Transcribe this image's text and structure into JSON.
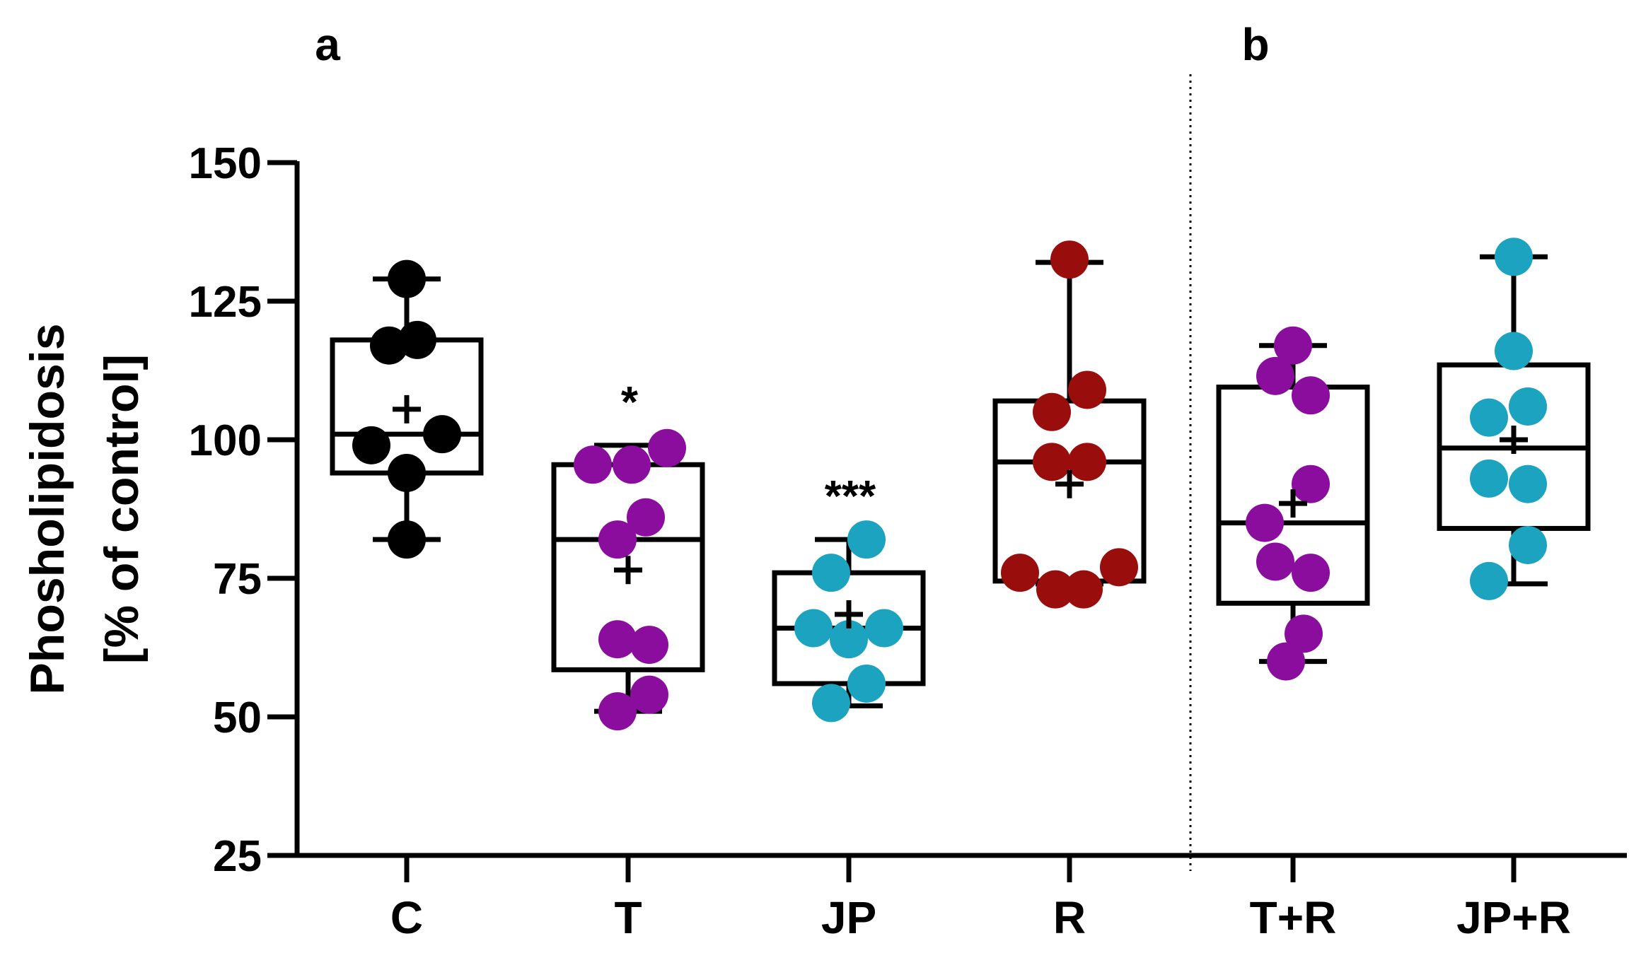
{
  "chart_data": {
    "type": "box",
    "ylabel_line1": "Phosholipidosis",
    "ylabel_line2": "[% of control]",
    "ylim": [
      25,
      150
    ],
    "yticks": [
      25,
      50,
      75,
      100,
      125,
      150
    ],
    "panels": [
      {
        "label": "a",
        "groups": [
          "C",
          "T",
          "JP",
          "R"
        ]
      },
      {
        "label": "b",
        "groups": [
          "T+R",
          "JP+R"
        ]
      }
    ],
    "groups": [
      {
        "name": "C",
        "color": "#000000",
        "whisker_low": 82,
        "q1": 94,
        "median": 101,
        "q3": 118,
        "whisker_high": 129,
        "mean": 105.5,
        "points": [
          [
            0,
            129
          ],
          [
            -0.25,
            117
          ],
          [
            0.15,
            118
          ],
          [
            -0.5,
            99
          ],
          [
            0.5,
            101
          ],
          [
            0,
            94
          ],
          [
            0,
            82
          ]
        ],
        "significance": ""
      },
      {
        "name": "T",
        "color": "#8b0d9e",
        "whisker_low": 51,
        "q1": 58.5,
        "median": 82,
        "q3": 95.5,
        "whisker_high": 99,
        "mean": 76.5,
        "points": [
          [
            -0.5,
            95.5
          ],
          [
            0.05,
            95.5
          ],
          [
            0.55,
            98.5
          ],
          [
            0.25,
            86
          ],
          [
            -0.15,
            82
          ],
          [
            -0.15,
            64
          ],
          [
            0.3,
            63
          ],
          [
            0.3,
            54
          ],
          [
            -0.15,
            51
          ]
        ],
        "significance": "*"
      },
      {
        "name": "JP",
        "color": "#1ba3bf",
        "whisker_low": 52,
        "q1": 56,
        "median": 66,
        "q3": 76,
        "whisker_high": 82,
        "mean": 68.5,
        "points": [
          [
            0.25,
            82
          ],
          [
            -0.25,
            76
          ],
          [
            -0.5,
            66
          ],
          [
            0,
            64
          ],
          [
            0.5,
            66
          ],
          [
            0.25,
            56
          ],
          [
            -0.25,
            52.5
          ]
        ],
        "significance": "***"
      },
      {
        "name": "R",
        "color": "#9a0d0d",
        "whisker_low": 74,
        "q1": 74.5,
        "median": 96,
        "q3": 107,
        "whisker_high": 132,
        "mean": 92,
        "points": [
          [
            0,
            132.5
          ],
          [
            0.25,
            109
          ],
          [
            -0.25,
            105
          ],
          [
            -0.25,
            96
          ],
          [
            0.25,
            96
          ],
          [
            -0.7,
            76
          ],
          [
            -0.2,
            73
          ],
          [
            0.2,
            73
          ],
          [
            0.7,
            77
          ]
        ],
        "significance": ""
      },
      {
        "name": "T+R",
        "color": "#8b0d9e",
        "whisker_low": 60,
        "q1": 70.5,
        "median": 85,
        "q3": 109.5,
        "whisker_high": 117,
        "mean": 88.5,
        "points": [
          [
            0,
            117
          ],
          [
            -0.25,
            111.5
          ],
          [
            0.25,
            108
          ],
          [
            0.25,
            92
          ],
          [
            -0.4,
            85
          ],
          [
            -0.25,
            78
          ],
          [
            0.25,
            76
          ],
          [
            0.15,
            65
          ],
          [
            -0.1,
            60
          ]
        ],
        "significance": ""
      },
      {
        "name": "JP+R",
        "color": "#1ba3bf",
        "whisker_low": 74,
        "q1": 84,
        "median": 98.5,
        "q3": 113.5,
        "whisker_high": 133,
        "mean": 100,
        "points": [
          [
            0,
            133
          ],
          [
            0,
            116
          ],
          [
            -0.35,
            104
          ],
          [
            0.2,
            106
          ],
          [
            -0.35,
            93
          ],
          [
            0.2,
            92
          ],
          [
            0.2,
            81
          ],
          [
            -0.35,
            74.5
          ]
        ],
        "significance": ""
      }
    ]
  }
}
